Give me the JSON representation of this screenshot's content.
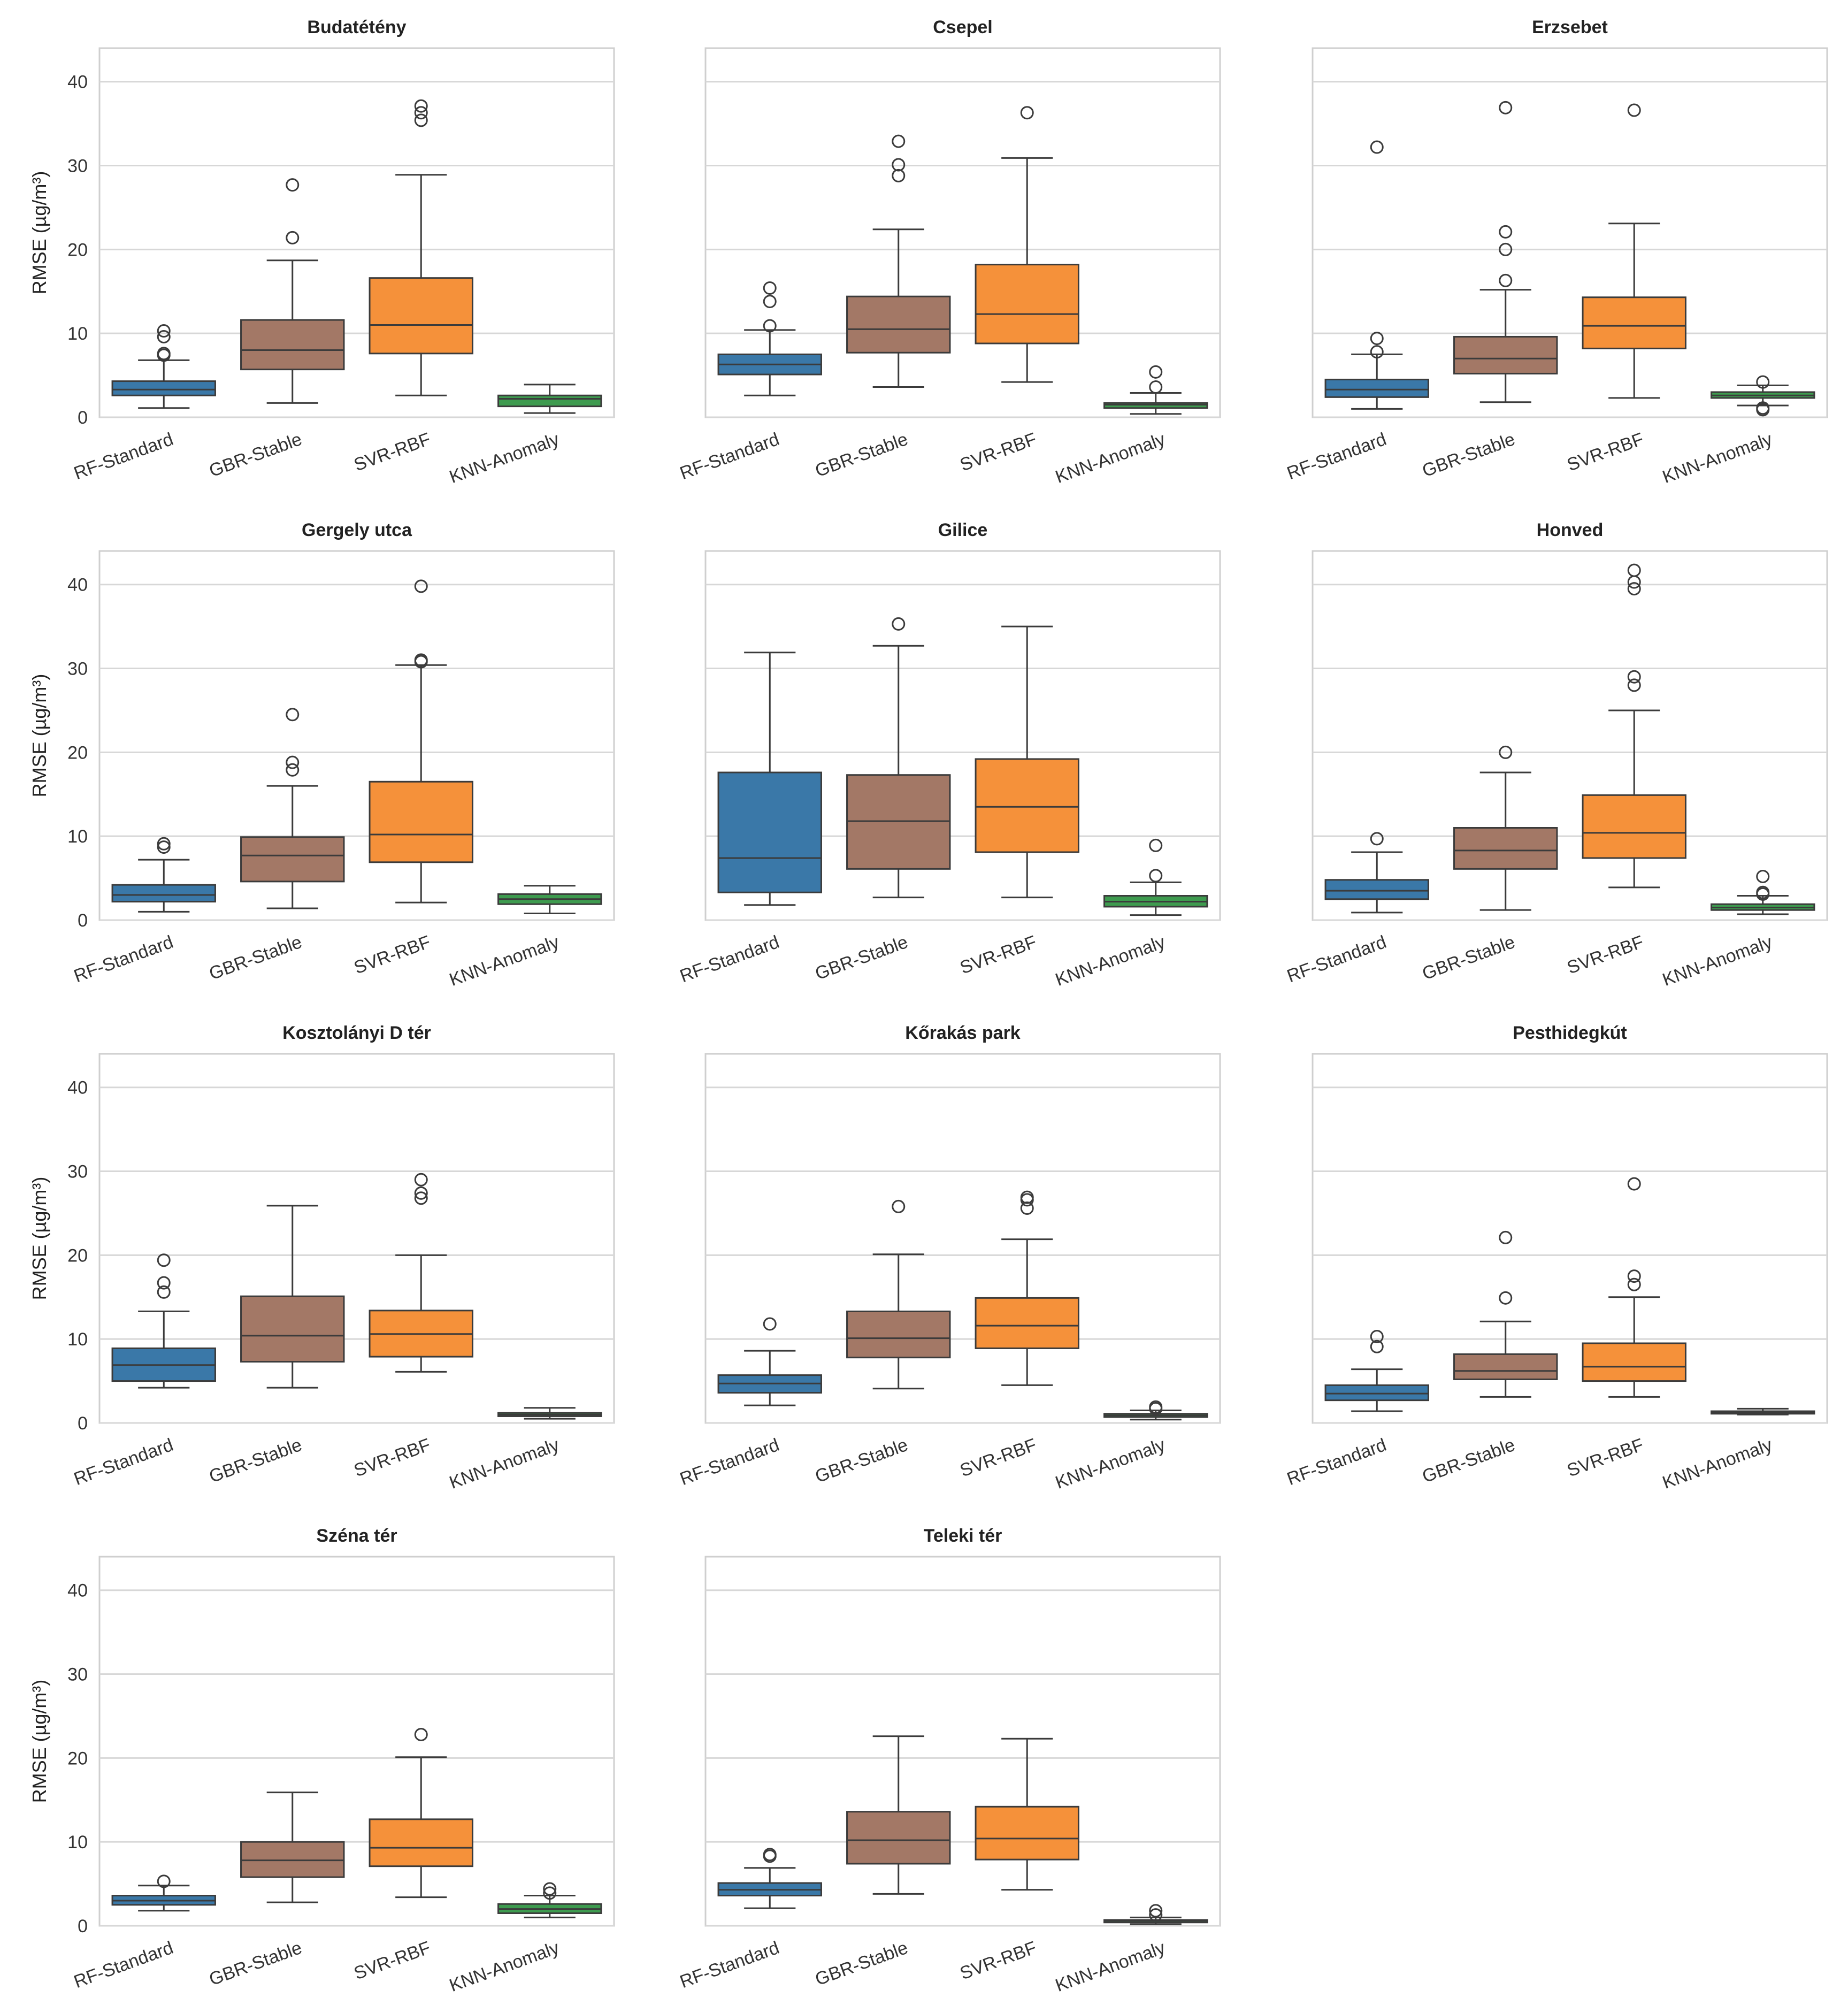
{
  "figure": {
    "categories": [
      "RF-Standard",
      "GBR-Stable",
      "SVR-RBF",
      "KNN-Anomaly"
    ],
    "colors": [
      "#3a78a8",
      "#a37866",
      "#f5913a",
      "#3e9b4f"
    ],
    "ylabel": "RMSE (µg/m³)",
    "yticks": [
      0,
      10,
      20,
      30,
      40
    ],
    "ylim": [
      0,
      44
    ]
  },
  "chart_data": [
    {
      "type": "box",
      "title": "Budatétény",
      "categories": [
        "RF-Standard",
        "GBR-Stable",
        "SVR-RBF",
        "KNN-Anomaly"
      ],
      "ylabel": "RMSE (µg/m³)",
      "ylim": [
        0,
        44
      ],
      "grid": true,
      "boxes": [
        {
          "whislo": 1.1,
          "q1": 2.6,
          "med": 3.3,
          "q3": 4.3,
          "whishi": 6.8,
          "fliers": [
            7.4,
            7.6,
            9.6,
            10.3
          ]
        },
        {
          "whislo": 1.7,
          "q1": 5.7,
          "med": 8.0,
          "q3": 11.6,
          "whishi": 18.7,
          "fliers": [
            21.4,
            27.7
          ]
        },
        {
          "whislo": 2.6,
          "q1": 7.6,
          "med": 11.0,
          "q3": 16.6,
          "whishi": 28.9,
          "fliers": [
            35.4,
            36.3,
            37.1
          ]
        },
        {
          "whislo": 0.5,
          "q1": 1.3,
          "med": 2.2,
          "q3": 2.6,
          "whishi": 3.9,
          "fliers": []
        }
      ]
    },
    {
      "type": "box",
      "title": "Csepel",
      "categories": [
        "RF-Standard",
        "GBR-Stable",
        "SVR-RBF",
        "KNN-Anomaly"
      ],
      "ylim": [
        0,
        44
      ],
      "grid": true,
      "boxes": [
        {
          "whislo": 2.6,
          "q1": 5.1,
          "med": 6.3,
          "q3": 7.5,
          "whishi": 10.4,
          "fliers": [
            10.9,
            13.8,
            15.4
          ]
        },
        {
          "whislo": 3.6,
          "q1": 7.7,
          "med": 10.5,
          "q3": 14.4,
          "whishi": 22.4,
          "fliers": [
            28.8,
            30.1,
            32.9
          ]
        },
        {
          "whislo": 4.2,
          "q1": 8.8,
          "med": 12.3,
          "q3": 18.2,
          "whishi": 30.9,
          "fliers": [
            36.3
          ]
        },
        {
          "whislo": 0.4,
          "q1": 1.1,
          "med": 1.5,
          "q3": 1.7,
          "whishi": 2.9,
          "fliers": [
            3.6,
            5.4
          ]
        }
      ]
    },
    {
      "type": "box",
      "title": "Erzsebet",
      "categories": [
        "RF-Standard",
        "GBR-Stable",
        "SVR-RBF",
        "KNN-Anomaly"
      ],
      "ylim": [
        0,
        44
      ],
      "grid": true,
      "boxes": [
        {
          "whislo": 1.0,
          "q1": 2.4,
          "med": 3.3,
          "q3": 4.5,
          "whishi": 7.5,
          "fliers": [
            7.8,
            9.4,
            32.2
          ]
        },
        {
          "whislo": 1.8,
          "q1": 5.2,
          "med": 7.0,
          "q3": 9.6,
          "whishi": 15.2,
          "fliers": [
            16.3,
            20.0,
            22.1,
            36.9
          ]
        },
        {
          "whislo": 2.3,
          "q1": 8.2,
          "med": 10.9,
          "q3": 14.3,
          "whishi": 23.1,
          "fliers": [
            36.6
          ]
        },
        {
          "whislo": 1.4,
          "q1": 2.3,
          "med": 2.6,
          "q3": 3.0,
          "whishi": 3.8,
          "fliers": [
            0.9,
            1.1,
            4.2
          ]
        }
      ]
    },
    {
      "type": "box",
      "title": "Gergely utca",
      "categories": [
        "RF-Standard",
        "GBR-Stable",
        "SVR-RBF",
        "KNN-Anomaly"
      ],
      "ylabel": "RMSE (µg/m³)",
      "ylim": [
        0,
        44
      ],
      "grid": true,
      "boxes": [
        {
          "whislo": 1.0,
          "q1": 2.2,
          "med": 3.0,
          "q3": 4.2,
          "whishi": 7.2,
          "fliers": [
            8.7,
            9.1
          ]
        },
        {
          "whislo": 1.4,
          "q1": 4.6,
          "med": 7.7,
          "q3": 9.9,
          "whishi": 16.0,
          "fliers": [
            17.9,
            18.8,
            24.5
          ]
        },
        {
          "whislo": 2.1,
          "q1": 6.9,
          "med": 10.2,
          "q3": 16.5,
          "whishi": 30.4,
          "fliers": [
            30.8,
            31.0,
            39.8
          ]
        },
        {
          "whislo": 0.8,
          "q1": 1.9,
          "med": 2.5,
          "q3": 3.1,
          "whishi": 4.1,
          "fliers": []
        }
      ]
    },
    {
      "type": "box",
      "title": "Gilice",
      "categories": [
        "RF-Standard",
        "GBR-Stable",
        "SVR-RBF",
        "KNN-Anomaly"
      ],
      "ylim": [
        0,
        44
      ],
      "grid": true,
      "boxes": [
        {
          "whislo": 1.8,
          "q1": 3.3,
          "med": 7.4,
          "q3": 17.6,
          "whishi": 31.9,
          "fliers": []
        },
        {
          "whislo": 2.7,
          "q1": 6.1,
          "med": 11.8,
          "q3": 17.3,
          "whishi": 32.7,
          "fliers": [
            35.3
          ]
        },
        {
          "whislo": 2.7,
          "q1": 8.1,
          "med": 13.5,
          "q3": 19.2,
          "whishi": 35.0,
          "fliers": []
        },
        {
          "whislo": 0.6,
          "q1": 1.6,
          "med": 2.2,
          "q3": 2.9,
          "whishi": 4.5,
          "fliers": [
            5.3,
            8.9
          ]
        }
      ]
    },
    {
      "type": "box",
      "title": "Honved",
      "categories": [
        "RF-Standard",
        "GBR-Stable",
        "SVR-RBF",
        "KNN-Anomaly"
      ],
      "ylim": [
        0,
        44
      ],
      "grid": true,
      "boxes": [
        {
          "whislo": 0.9,
          "q1": 2.5,
          "med": 3.5,
          "q3": 4.8,
          "whishi": 8.1,
          "fliers": [
            9.7
          ]
        },
        {
          "whislo": 1.2,
          "q1": 6.1,
          "med": 8.3,
          "q3": 11.0,
          "whishi": 17.6,
          "fliers": [
            20.0
          ]
        },
        {
          "whislo": 3.9,
          "q1": 7.4,
          "med": 10.4,
          "q3": 14.9,
          "whishi": 25.0,
          "fliers": [
            28.0,
            29.0,
            39.5,
            40.3,
            41.7
          ]
        },
        {
          "whislo": 0.7,
          "q1": 1.2,
          "med": 1.5,
          "q3": 1.9,
          "whishi": 2.9,
          "fliers": [
            3.1,
            3.3,
            5.2
          ]
        }
      ]
    },
    {
      "type": "box",
      "title": "Kosztolányi D tér",
      "categories": [
        "RF-Standard",
        "GBR-Stable",
        "SVR-RBF",
        "KNN-Anomaly"
      ],
      "ylabel": "RMSE (µg/m³)",
      "ylim": [
        0,
        44
      ],
      "grid": true,
      "boxes": [
        {
          "whislo": 4.2,
          "q1": 5.0,
          "med": 6.9,
          "q3": 8.9,
          "whishi": 13.3,
          "fliers": [
            15.6,
            16.7,
            19.4
          ]
        },
        {
          "whislo": 4.2,
          "q1": 7.3,
          "med": 10.4,
          "q3": 15.1,
          "whishi": 25.9,
          "fliers": []
        },
        {
          "whislo": 6.1,
          "q1": 7.9,
          "med": 10.6,
          "q3": 13.4,
          "whishi": 20.0,
          "fliers": [
            26.8,
            27.4,
            29.0
          ]
        },
        {
          "whislo": 0.5,
          "q1": 0.8,
          "med": 1.0,
          "q3": 1.2,
          "whishi": 1.8,
          "fliers": []
        }
      ]
    },
    {
      "type": "box",
      "title": "Kőrakás park",
      "categories": [
        "RF-Standard",
        "GBR-Stable",
        "SVR-RBF",
        "KNN-Anomaly"
      ],
      "ylim": [
        0,
        44
      ],
      "grid": true,
      "boxes": [
        {
          "whislo": 2.1,
          "q1": 3.6,
          "med": 4.7,
          "q3": 5.7,
          "whishi": 8.6,
          "fliers": [
            11.8
          ]
        },
        {
          "whislo": 4.1,
          "q1": 7.8,
          "med": 10.1,
          "q3": 13.3,
          "whishi": 20.1,
          "fliers": [
            25.8
          ]
        },
        {
          "whislo": 4.5,
          "q1": 8.9,
          "med": 11.6,
          "q3": 14.9,
          "whishi": 21.9,
          "fliers": [
            25.6,
            26.6,
            26.9
          ]
        },
        {
          "whislo": 0.4,
          "q1": 0.7,
          "med": 0.9,
          "q3": 1.1,
          "whishi": 1.5,
          "fliers": [
            1.7,
            1.9
          ]
        }
      ]
    },
    {
      "type": "box",
      "title": "Pesthidegkút",
      "categories": [
        "RF-Standard",
        "GBR-Stable",
        "SVR-RBF",
        "KNN-Anomaly"
      ],
      "ylim": [
        0,
        44
      ],
      "grid": true,
      "boxes": [
        {
          "whislo": 1.4,
          "q1": 2.7,
          "med": 3.5,
          "q3": 4.5,
          "whishi": 6.4,
          "fliers": [
            9.1,
            10.3
          ]
        },
        {
          "whislo": 3.1,
          "q1": 5.2,
          "med": 6.2,
          "q3": 8.2,
          "whishi": 12.1,
          "fliers": [
            14.9,
            22.1
          ]
        },
        {
          "whislo": 3.1,
          "q1": 5.0,
          "med": 6.7,
          "q3": 9.5,
          "whishi": 15.0,
          "fliers": [
            16.5,
            17.5,
            28.5
          ]
        },
        {
          "whislo": 1.0,
          "q1": 1.1,
          "med": 1.2,
          "q3": 1.4,
          "whishi": 1.7,
          "fliers": []
        }
      ]
    },
    {
      "type": "box",
      "title": "Széna tér",
      "categories": [
        "RF-Standard",
        "GBR-Stable",
        "SVR-RBF",
        "KNN-Anomaly"
      ],
      "ylabel": "RMSE (µg/m³)",
      "ylim": [
        0,
        44
      ],
      "grid": true,
      "boxes": [
        {
          "whislo": 1.8,
          "q1": 2.5,
          "med": 3.0,
          "q3": 3.6,
          "whishi": 4.8,
          "fliers": [
            5.3
          ]
        },
        {
          "whislo": 2.8,
          "q1": 5.8,
          "med": 7.8,
          "q3": 10.0,
          "whishi": 15.9,
          "fliers": []
        },
        {
          "whislo": 3.4,
          "q1": 7.1,
          "med": 9.3,
          "q3": 12.7,
          "whishi": 20.1,
          "fliers": [
            22.8
          ]
        },
        {
          "whislo": 1.0,
          "q1": 1.5,
          "med": 2.0,
          "q3": 2.6,
          "whishi": 3.6,
          "fliers": [
            3.9,
            4.4
          ]
        }
      ]
    },
    {
      "type": "box",
      "title": "Teleki tér",
      "categories": [
        "RF-Standard",
        "GBR-Stable",
        "SVR-RBF",
        "KNN-Anomaly"
      ],
      "ylim": [
        0,
        44
      ],
      "grid": true,
      "boxes": [
        {
          "whislo": 2.1,
          "q1": 3.6,
          "med": 4.3,
          "q3": 5.1,
          "whishi": 6.9,
          "fliers": [
            8.3,
            8.5
          ]
        },
        {
          "whislo": 3.8,
          "q1": 7.4,
          "med": 10.2,
          "q3": 13.6,
          "whishi": 22.6,
          "fliers": []
        },
        {
          "whislo": 4.3,
          "q1": 7.9,
          "med": 10.4,
          "q3": 14.2,
          "whishi": 22.3,
          "fliers": []
        },
        {
          "whislo": 0.2,
          "q1": 0.4,
          "med": 0.6,
          "q3": 0.7,
          "whishi": 1.0,
          "fliers": [
            1.3,
            1.8
          ]
        }
      ]
    }
  ]
}
